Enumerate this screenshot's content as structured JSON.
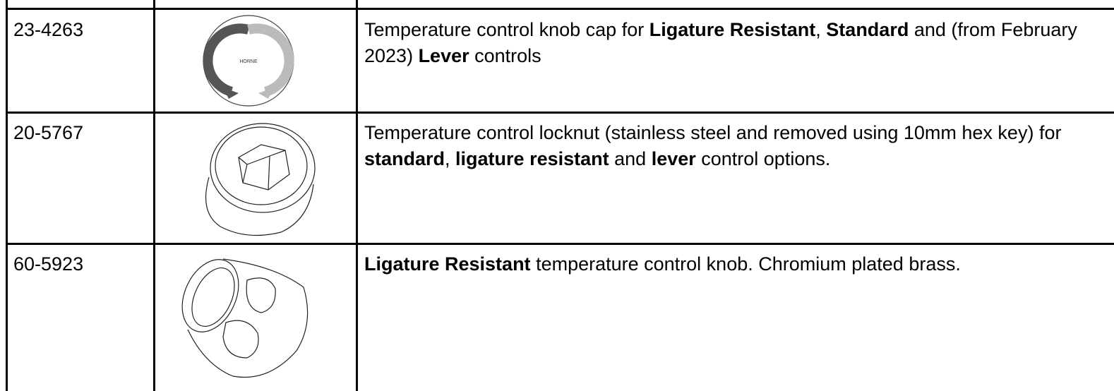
{
  "table": {
    "rows": [
      {
        "code": "23-4263",
        "image_text": "HORNE",
        "description": [
          {
            "text": "Temperature control knob cap for ",
            "bold": false
          },
          {
            "text": "Ligature Resistant",
            "bold": true
          },
          {
            "text": ", ",
            "bold": false
          },
          {
            "text": "Standard",
            "bold": true
          },
          {
            "text": " and (from February 2023) ",
            "bold": false
          },
          {
            "text": "Lever",
            "bold": true
          },
          {
            "text": " controls",
            "bold": false
          }
        ]
      },
      {
        "code": "20-5767",
        "description": [
          {
            "text": "Temperature control locknut (stainless steel and removed using 10mm hex key) for ",
            "bold": false
          },
          {
            "text": "standard",
            "bold": true
          },
          {
            "text": ", ",
            "bold": false
          },
          {
            "text": "ligature resistant",
            "bold": true
          },
          {
            "text": " and ",
            "bold": false
          },
          {
            "text": "lever",
            "bold": true
          },
          {
            "text": " control options.",
            "bold": false
          }
        ]
      },
      {
        "code": "60-5923",
        "description": [
          {
            "text": "Ligature Resistant",
            "bold": true
          },
          {
            "text": " temperature control knob. Chromium plated brass.",
            "bold": false
          }
        ]
      }
    ]
  }
}
